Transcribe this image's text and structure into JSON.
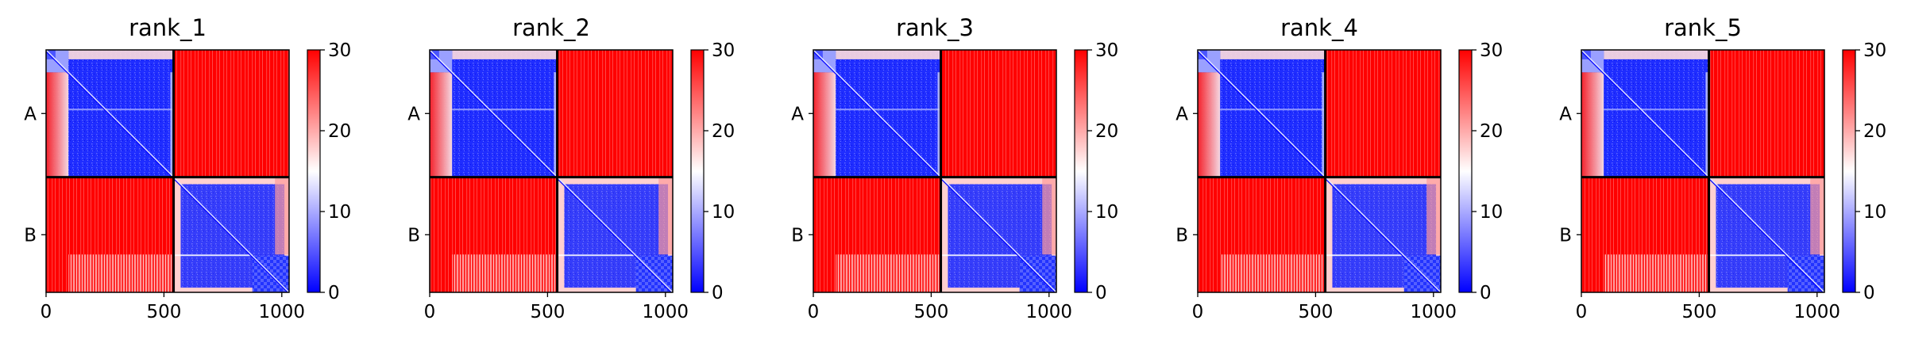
{
  "chart_data": [
    {
      "type": "heatmap",
      "title": "rank_1",
      "x_ticks": [
        "0",
        "500",
        "1000"
      ],
      "x_tick_values": [
        0,
        500,
        1000
      ],
      "xlim": [
        0,
        1031
      ],
      "y_tick_labels": [
        "A",
        "B"
      ],
      "chain_boundary": 541,
      "colorbar": {
        "ticks": [
          "0",
          "10",
          "20",
          "30"
        ],
        "tick_values": [
          0,
          10,
          20,
          30
        ],
        "range": [
          0,
          30
        ],
        "colormap": "bwr"
      }
    },
    {
      "type": "heatmap",
      "title": "rank_2",
      "x_ticks": [
        "0",
        "500",
        "1000"
      ],
      "x_tick_values": [
        0,
        500,
        1000
      ],
      "xlim": [
        0,
        1031
      ],
      "y_tick_labels": [
        "A",
        "B"
      ],
      "chain_boundary": 541,
      "colorbar": {
        "ticks": [
          "0",
          "10",
          "20",
          "30"
        ],
        "tick_values": [
          0,
          10,
          20,
          30
        ],
        "range": [
          0,
          30
        ],
        "colormap": "bwr"
      }
    },
    {
      "type": "heatmap",
      "title": "rank_3",
      "x_ticks": [
        "0",
        "500",
        "1000"
      ],
      "x_tick_values": [
        0,
        500,
        1000
      ],
      "xlim": [
        0,
        1031
      ],
      "y_tick_labels": [
        "A",
        "B"
      ],
      "chain_boundary": 541,
      "colorbar": {
        "ticks": [
          "0",
          "10",
          "20",
          "30"
        ],
        "tick_values": [
          0,
          10,
          20,
          30
        ],
        "range": [
          0,
          30
        ],
        "colormap": "bwr"
      }
    },
    {
      "type": "heatmap",
      "title": "rank_4",
      "x_ticks": [
        "0",
        "500",
        "1000"
      ],
      "x_tick_values": [
        0,
        500,
        1000
      ],
      "xlim": [
        0,
        1031
      ],
      "y_tick_labels": [
        "A",
        "B"
      ],
      "chain_boundary": 541,
      "colorbar": {
        "ticks": [
          "0",
          "10",
          "20",
          "30"
        ],
        "tick_values": [
          0,
          10,
          20,
          30
        ],
        "range": [
          0,
          30
        ],
        "colormap": "bwr"
      }
    },
    {
      "type": "heatmap",
      "title": "rank_5",
      "x_ticks": [
        "0",
        "500",
        "1000"
      ],
      "x_tick_values": [
        0,
        500,
        1000
      ],
      "xlim": [
        0,
        1031
      ],
      "y_tick_labels": [
        "A",
        "B"
      ],
      "chain_boundary": 541,
      "colorbar": {
        "ticks": [
          "0",
          "10",
          "20",
          "30"
        ],
        "tick_values": [
          0,
          10,
          20,
          30
        ],
        "range": [
          0,
          30
        ],
        "colormap": "bwr"
      }
    }
  ],
  "colors": {
    "high": "#ff0000",
    "mid": "#ffffff",
    "low": "#0000ff",
    "divider": "#000000"
  }
}
